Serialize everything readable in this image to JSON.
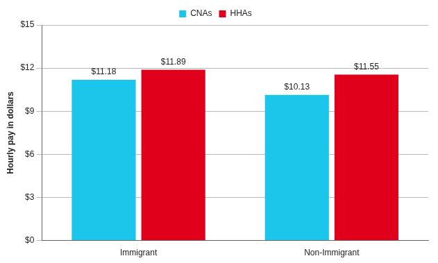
{
  "chart_data": {
    "type": "bar",
    "y_label": "Hourly pay in dollars",
    "categories": [
      "Immigrant",
      "Non-Immigrant"
    ],
    "series": [
      {
        "name": "CNAs",
        "color": "#1cc6ea",
        "values": [
          11.18,
          10.13
        ],
        "value_labels": [
          "$11.18",
          "$10.13"
        ]
      },
      {
        "name": "HHAs",
        "color": "#e0001b",
        "values": [
          11.89,
          11.55
        ],
        "value_labels": [
          "$11.89",
          "$11.55"
        ]
      }
    ],
    "ylim": [
      0,
      15
    ],
    "yticks": [
      {
        "value": 0,
        "label": "$0"
      },
      {
        "value": 3,
        "label": "$3"
      },
      {
        "value": 6,
        "label": "$6"
      },
      {
        "value": 9,
        "label": "$9"
      },
      {
        "value": 12,
        "label": "$12"
      },
      {
        "value": 15,
        "label": "$15"
      }
    ],
    "grid": true,
    "legend": "top",
    "data_labels": true
  }
}
